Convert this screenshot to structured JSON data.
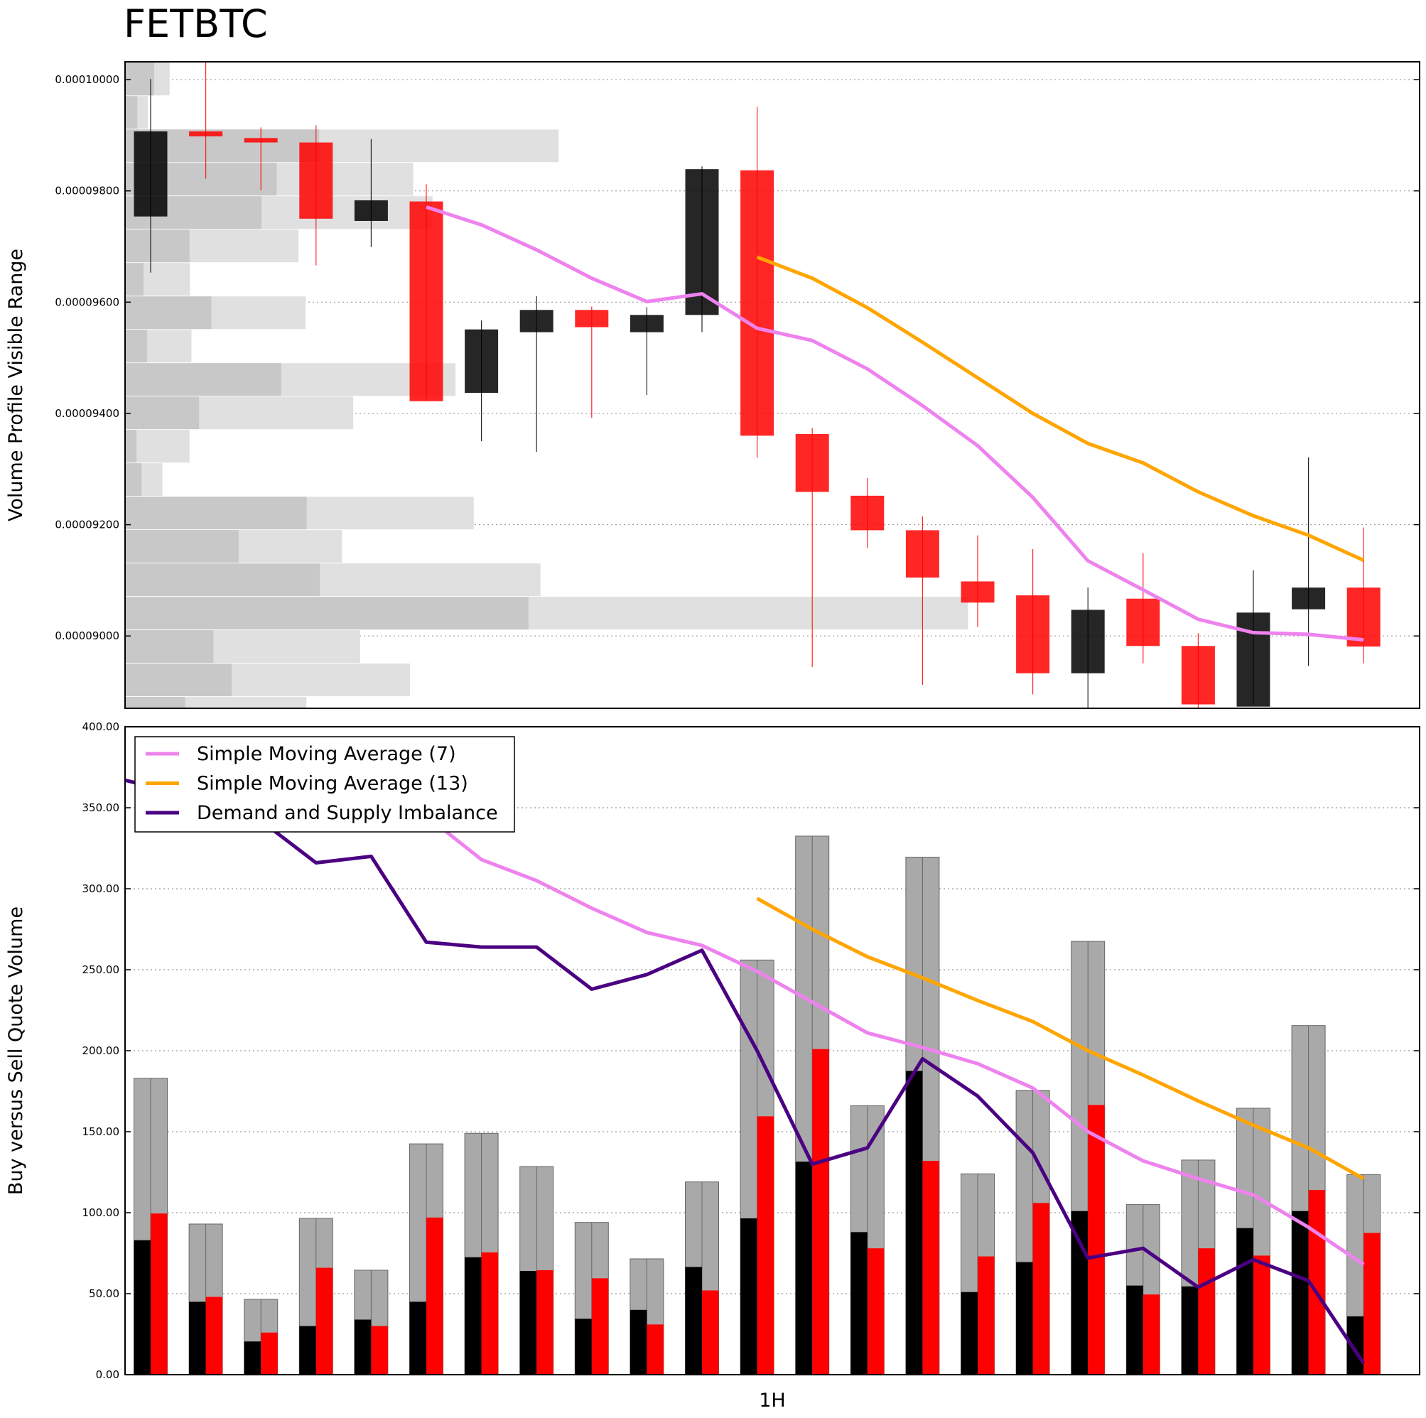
{
  "chart_data": {
    "title": "FETBTC",
    "xlabel": "1H",
    "colors": {
      "bull_candle": "#000000",
      "bear_candle": "#ff0000",
      "sma7": "#ee82ee",
      "sma13": "#ffa500",
      "imbalance": "#4b0082",
      "volume_total": "#a9a9a9",
      "volume_buy": "#000000",
      "volume_sell": "#ff0000",
      "profile_dark": "#c8c8c8",
      "profile_light": "#e0e0e0"
    },
    "price_panel": {
      "type": "candlestick",
      "ylabel": "Volume Profile Visible Range",
      "ylim": [
        8.87e-05,
        0.00010032
      ],
      "yticks": [
        "0.00009000",
        "0.00009200",
        "0.00009400",
        "0.00009600",
        "0.00009800",
        "0.00010000"
      ],
      "grid": true,
      "candles": [
        {
          "open": 9.754e-05,
          "high": 0.00010001,
          "low": 9.653e-05,
          "close": 9.907e-05
        },
        {
          "open": 9.907e-05,
          "high": 0.00010039,
          "low": 9.822e-05,
          "close": 9.898e-05
        },
        {
          "open": 9.895e-05,
          "high": 9.914e-05,
          "low": 9.801e-05,
          "close": 9.887e-05
        },
        {
          "open": 9.887e-05,
          "high": 9.918e-05,
          "low": 9.666e-05,
          "close": 9.75e-05
        },
        {
          "open": 9.746e-05,
          "high": 9.893e-05,
          "low": 9.699e-05,
          "close": 9.783e-05
        },
        {
          "open": 9.781e-05,
          "high": 9.812e-05,
          "low": 9.422e-05,
          "close": 9.422e-05
        },
        {
          "open": 9.437e-05,
          "high": 9.567e-05,
          "low": 9.35e-05,
          "close": 9.551e-05
        },
        {
          "open": 9.546e-05,
          "high": 9.611e-05,
          "low": 9.331e-05,
          "close": 9.586e-05
        },
        {
          "open": 9.586e-05,
          "high": 9.592e-05,
          "low": 9.392e-05,
          "close": 9.555e-05
        },
        {
          "open": 9.546e-05,
          "high": 9.591e-05,
          "low": 9.433e-05,
          "close": 9.577e-05
        },
        {
          "open": 9.577e-05,
          "high": 9.844e-05,
          "low": 9.546e-05,
          "close": 9.839e-05
        },
        {
          "open": 9.837e-05,
          "high": 9.951e-05,
          "low": 9.32e-05,
          "close": 9.36e-05
        },
        {
          "open": 9.363e-05,
          "high": 9.374e-05,
          "low": 8.944e-05,
          "close": 9.259e-05
        },
        {
          "open": 9.252e-05,
          "high": 9.284e-05,
          "low": 9.158e-05,
          "close": 9.19e-05
        },
        {
          "open": 9.19e-05,
          "high": 9.215e-05,
          "low": 8.912e-05,
          "close": 9.105e-05
        },
        {
          "open": 9.098e-05,
          "high": 9.181e-05,
          "low": 9.016e-05,
          "close": 9.06e-05
        },
        {
          "open": 9.073e-05,
          "high": 9.156e-05,
          "low": 8.895e-05,
          "close": 8.933e-05
        },
        {
          "open": 8.933e-05,
          "high": 9.087e-05,
          "low": 8.87e-05,
          "close": 9.047e-05
        },
        {
          "open": 9.067e-05,
          "high": 9.149e-05,
          "low": 8.951e-05,
          "close": 8.982e-05
        },
        {
          "open": 8.982e-05,
          "high": 9.005e-05,
          "low": 8.86e-05,
          "close": 8.877e-05
        },
        {
          "open": 8.873e-05,
          "high": 9.118e-05,
          "low": 8.876e-05,
          "close": 9.042e-05
        },
        {
          "open": 9.048e-05,
          "high": 9.321e-05,
          "low": 8.946e-05,
          "close": 9.087e-05
        },
        {
          "open": 9.087e-05,
          "high": 9.195e-05,
          "low": 8.951e-05,
          "close": 8.981e-05
        }
      ],
      "sma7": [
        null,
        null,
        null,
        null,
        null,
        9.771e-05,
        9.739e-05,
        9.694e-05,
        9.643e-05,
        9.601e-05,
        9.615e-05,
        9.553e-05,
        9.531e-05,
        9.48e-05,
        9.414e-05,
        9.342e-05,
        9.249e-05,
        9.135e-05,
        9.083e-05,
        9.03e-05,
        9.006e-05,
        9.003e-05,
        8.993e-05
      ],
      "sma13": [
        null,
        null,
        null,
        null,
        null,
        null,
        null,
        null,
        null,
        null,
        null,
        9.681e-05,
        9.643e-05,
        9.59e-05,
        9.528e-05,
        9.464e-05,
        9.4e-05,
        9.346e-05,
        9.311e-05,
        9.259e-05,
        9.216e-05,
        9.181e-05,
        9.136e-05
      ],
      "volume_profile": [
        {
          "low": 9.971e-05,
          "high": 0.00010032,
          "dark": 7.41e-06,
          "total": 1.136e-05
        },
        {
          "low": 9.911e-05,
          "high": 9.971e-05,
          "dark": 3.12e-06,
          "total": 5.82e-06
        },
        {
          "low": 9.851e-05,
          "high": 9.911e-05,
          "dark": 4.95e-05,
          "total": 0.00011051
        },
        {
          "low": 9.791e-05,
          "high": 9.851e-05,
          "dark": 3.867e-05,
          "total": 7.346e-05
        },
        {
          "low": 9.731e-05,
          "high": 9.791e-05,
          "dark": 3.48e-05,
          "total": 7.838e-05
        },
        {
          "low": 9.671e-05,
          "high": 9.731e-05,
          "dark": 1.643e-05,
          "total": 4.42e-05
        },
        {
          "low": 9.611e-05,
          "high": 9.671e-05,
          "dark": 4.73e-06,
          "total": 1.653e-05
        },
        {
          "low": 9.551e-05,
          "high": 9.611e-05,
          "dark": 2.198e-05,
          "total": 4.605e-05
        },
        {
          "low": 9.491e-05,
          "high": 9.551e-05,
          "dark": 5.63e-06,
          "total": 1.693e-05
        },
        {
          "low": 9.431e-05,
          "high": 9.491e-05,
          "dark": 3.982e-05,
          "total": 8.424e-05
        },
        {
          "low": 9.371e-05,
          "high": 9.431e-05,
          "dark": 1.887e-05,
          "total": 5.817e-05
        },
        {
          "low": 9.311e-05,
          "high": 9.371e-05,
          "dark": 2.92e-06,
          "total": 1.643e-05
        },
        {
          "low": 9.251e-05,
          "high": 9.311e-05,
          "dark": 4.23e-06,
          "total": 9.52e-06
        },
        {
          "low": 9.191e-05,
          "high": 9.251e-05,
          "dark": 4.629e-05,
          "total": 8.888e-05
        },
        {
          "low": 9.131e-05,
          "high": 9.191e-05,
          "dark": 2.896e-05,
          "total": 5.531e-05
        },
        {
          "low": 9.071e-05,
          "high": 9.131e-05,
          "dark": 4.969e-05,
          "total": 0.00010589
        },
        {
          "low": 9.011e-05,
          "high": 9.071e-05,
          "dark": 0.00010284,
          "total": 0.00021488
        },
        {
          "low": 8.951e-05,
          "high": 9.011e-05,
          "dark": 2.254e-05,
          "total": 5.994e-05
        },
        {
          "low": 8.891e-05,
          "high": 8.951e-05,
          "dark": 2.72e-05,
          "total": 7.263e-05
        },
        {
          "low": 8.831e-05,
          "high": 8.891e-05,
          "dark": 1.532e-05,
          "total": 4.623e-05
        }
      ]
    },
    "volume_panel": {
      "type": "bar",
      "ylabel": "Buy versus Sell Quote Volume",
      "ylim": [
        0,
        400
      ],
      "yticks": [
        "0.00",
        "50.00",
        "100.00",
        "150.00",
        "200.00",
        "250.00",
        "300.00",
        "350.00",
        "400.00"
      ],
      "grid": true,
      "legend_position": "top-left",
      "total": [
        183.0,
        93.0,
        46.5,
        96.5,
        64.5,
        142.5,
        149.0,
        128.5,
        94.0,
        71.5,
        119.0,
        256.0,
        332.5,
        166.0,
        319.5,
        124.0,
        175.5,
        267.5,
        105.0,
        132.5,
        164.5,
        215.5,
        123.5
      ],
      "buy": [
        83.0,
        45.0,
        20.5,
        30.0,
        34.0,
        45.0,
        72.5,
        64.0,
        34.5,
        40.0,
        66.5,
        96.5,
        131.5,
        88.0,
        187.5,
        51.0,
        69.5,
        101.0,
        55.0,
        54.5,
        90.5,
        101.0,
        36.0
      ],
      "sell": [
        99.5,
        48.0,
        26.0,
        66.0,
        30.0,
        97.0,
        75.5,
        64.5,
        59.5,
        31.0,
        52.0,
        159.5,
        201.0,
        78.0,
        132.0,
        73.0,
        106.0,
        166.5,
        49.5,
        78.0,
        73.5,
        114.0,
        87.5
      ],
      "imbalance": [
        367,
        355,
        342,
        316,
        320,
        267,
        264,
        264,
        238,
        247,
        262,
        200,
        130,
        140,
        195,
        172,
        137,
        72,
        78,
        54,
        71,
        58,
        7
      ],
      "imbalance_x_start": -0.3,
      "sma7": [
        null,
        null,
        null,
        null,
        null,
        345.0,
        318.0,
        305.0,
        288.0,
        273.0,
        265.0,
        249.0,
        230.0,
        211.0,
        202.0,
        192.0,
        177.0,
        150.0,
        132.0,
        121.0,
        111.0,
        91.0,
        68.0
      ],
      "sma13": [
        null,
        null,
        null,
        null,
        null,
        null,
        null,
        null,
        null,
        null,
        null,
        294.0,
        275.0,
        258.0,
        245.0,
        231.0,
        218.0,
        200.0,
        185.0,
        169.0,
        154.0,
        140.0,
        121.0
      ],
      "legend": [
        {
          "label": "Simple Moving Average (7)",
          "color": "#ee82ee"
        },
        {
          "label": "Simple Moving Average (13)",
          "color": "#ffa500"
        },
        {
          "label": "Demand and Supply Imbalance",
          "color": "#4b0082"
        }
      ]
    }
  }
}
